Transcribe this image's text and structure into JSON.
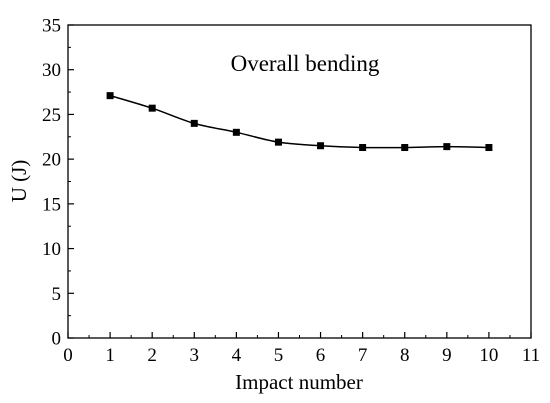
{
  "chart_data": {
    "type": "line",
    "annotation": "Overall bending",
    "xlabel": "Impact number",
    "ylabel": "U (J)",
    "xlim": [
      0,
      11
    ],
    "ylim": [
      0,
      35
    ],
    "x_ticks": [
      0,
      1,
      2,
      3,
      4,
      5,
      6,
      7,
      8,
      9,
      10,
      11
    ],
    "y_ticks": [
      0,
      5,
      10,
      15,
      20,
      25,
      30,
      35
    ],
    "grid": false,
    "legend": "none",
    "line_color": "#000000",
    "marker": "square",
    "series": [
      {
        "x": [
          1,
          2,
          3,
          4,
          5,
          6,
          7,
          8,
          9,
          10
        ],
        "values": [
          27.1,
          25.7,
          24.0,
          23.0,
          21.9,
          21.5,
          21.3,
          21.3,
          21.4,
          21.3
        ]
      }
    ]
  }
}
